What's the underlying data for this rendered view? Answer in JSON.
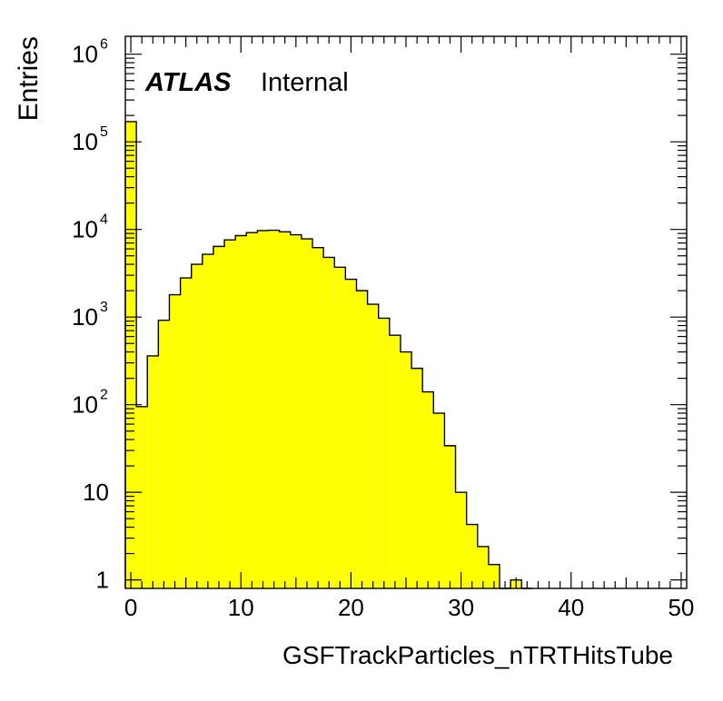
{
  "chart_data": {
    "type": "bar",
    "title": "",
    "xlabel": "GSFTrackParticles_nTRTHitsTube",
    "ylabel": "Entries",
    "label_bold": "ATLAS",
    "label_rest": "Internal",
    "yscale": "log",
    "xlim": [
      -0.5,
      50.5
    ],
    "ylim": [
      0.8,
      1600000
    ],
    "bin_width": 1,
    "x_ticks": [
      {
        "value": 0,
        "label": "0"
      },
      {
        "value": 10,
        "label": "10"
      },
      {
        "value": 20,
        "label": "20"
      },
      {
        "value": 30,
        "label": "30"
      },
      {
        "value": 40,
        "label": "40"
      },
      {
        "value": 50,
        "label": "50"
      }
    ],
    "y_ticks": [
      {
        "value": 1,
        "base": "1",
        "exp": ""
      },
      {
        "value": 10,
        "base": "10",
        "exp": ""
      },
      {
        "value": 100,
        "base": "10",
        "exp": "2"
      },
      {
        "value": 1000,
        "base": "10",
        "exp": "3"
      },
      {
        "value": 10000,
        "base": "10",
        "exp": "4"
      },
      {
        "value": 100000,
        "base": "10",
        "exp": "5"
      },
      {
        "value": 1000000,
        "base": "10",
        "exp": "6"
      }
    ],
    "fill_color": "#ffff00",
    "line_color": "#000000",
    "grid": false,
    "bins": [
      {
        "x": 0,
        "y": 170000
      },
      {
        "x": 1,
        "y": 95
      },
      {
        "x": 2,
        "y": 360
      },
      {
        "x": 3,
        "y": 920
      },
      {
        "x": 4,
        "y": 1800
      },
      {
        "x": 5,
        "y": 2800
      },
      {
        "x": 6,
        "y": 4000
      },
      {
        "x": 7,
        "y": 5200
      },
      {
        "x": 8,
        "y": 6400
      },
      {
        "x": 9,
        "y": 7600
      },
      {
        "x": 10,
        "y": 8500
      },
      {
        "x": 11,
        "y": 9200
      },
      {
        "x": 12,
        "y": 9700
      },
      {
        "x": 13,
        "y": 9800
      },
      {
        "x": 14,
        "y": 9400
      },
      {
        "x": 15,
        "y": 8700
      },
      {
        "x": 16,
        "y": 7800
      },
      {
        "x": 17,
        "y": 6200
      },
      {
        "x": 18,
        "y": 4800
      },
      {
        "x": 19,
        "y": 3700
      },
      {
        "x": 20,
        "y": 2700
      },
      {
        "x": 21,
        "y": 2000
      },
      {
        "x": 22,
        "y": 1400
      },
      {
        "x": 23,
        "y": 970
      },
      {
        "x": 24,
        "y": 620
      },
      {
        "x": 25,
        "y": 400
      },
      {
        "x": 26,
        "y": 260
      },
      {
        "x": 27,
        "y": 140
      },
      {
        "x": 28,
        "y": 80
      },
      {
        "x": 29,
        "y": 34
      },
      {
        "x": 30,
        "y": 10
      },
      {
        "x": 31,
        "y": 4.3
      },
      {
        "x": 32,
        "y": 2.4
      },
      {
        "x": 33,
        "y": 1.5
      },
      {
        "x": 34,
        "y": 0
      },
      {
        "x": 35,
        "y": 1
      },
      {
        "x": 36,
        "y": 0
      }
    ]
  }
}
